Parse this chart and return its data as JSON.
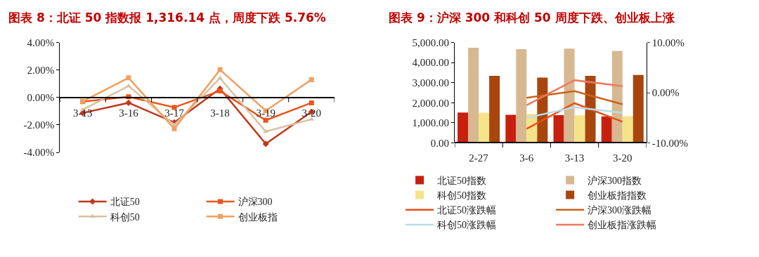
{
  "chart_data": [
    {
      "type": "line",
      "title": "图表 8：北证 50 指数报 1,316.14 点，周度下跌 5.76%",
      "categories": [
        "3-13",
        "3-16",
        "3-17",
        "3-18",
        "3-19",
        "3-20"
      ],
      "ylim": [
        -4,
        4
      ],
      "yticks": [
        {
          "value": -4,
          "label": "-4.00%"
        },
        {
          "value": -2,
          "label": "-2.00%"
        },
        {
          "value": 0,
          "label": "0.00%"
        },
        {
          "value": 2,
          "label": "2.00%"
        },
        {
          "value": 4,
          "label": "4.00%"
        }
      ],
      "legend": "bottom",
      "line_style": "solid",
      "series": [
        {
          "name": "北证50",
          "color": "#c0391b",
          "marker": "diamond",
          "values": [
            -1.13,
            -0.39,
            -1.82,
            0.64,
            -3.38,
            -1.05
          ]
        },
        {
          "name": "沪深300",
          "color": "#e8571c",
          "marker": "square",
          "values": [
            -0.31,
            0.05,
            -0.72,
            0.48,
            -1.66,
            -0.39
          ]
        },
        {
          "name": "科创50",
          "color": "#d9c0a0",
          "marker": "triangle",
          "values": [
            -0.89,
            0.84,
            -2.0,
            1.41,
            -2.48,
            -1.59
          ]
        },
        {
          "name": "创业板指",
          "color": "#f0a060",
          "marker": "square",
          "values": [
            -0.28,
            1.43,
            -2.28,
            2.02,
            -0.97,
            1.3
          ]
        }
      ]
    },
    {
      "type": "bar",
      "title": "图表 9：沪深 300 和科创 50 周度下跌、创业板上涨",
      "categories": [
        "2-27",
        "3-6",
        "3-13",
        "3-20"
      ],
      "ylim": [
        0,
        5000
      ],
      "yticks": [
        {
          "value": 0,
          "label": "0.00"
        },
        {
          "value": 1000,
          "label": "1,000.00"
        },
        {
          "value": 2000,
          "label": "2,000.00"
        },
        {
          "value": 3000,
          "label": "3,000.00"
        },
        {
          "value": 4000,
          "label": "4,000.00"
        },
        {
          "value": 5000,
          "label": "5,000.00"
        }
      ],
      "y2lim": [
        -10,
        10
      ],
      "y2ticks": [
        {
          "value": -10,
          "label": "-10.00%"
        },
        {
          "value": 0,
          "label": "0.00%"
        },
        {
          "value": 10,
          "label": "10.00%"
        }
      ],
      "legend": "bottom",
      "series": [
        {
          "name": "北证50指数",
          "type": "bar",
          "color": "#c8200e",
          "values": [
            1510,
            1400,
            1380,
            1320
          ]
        },
        {
          "name": "沪深300指数",
          "type": "bar",
          "color": "#d8b890",
          "values": [
            4740,
            4670,
            4700,
            4580
          ]
        },
        {
          "name": "科创50指数",
          "type": "bar",
          "color": "#f5e38a",
          "values": [
            1500,
            1440,
            1370,
            1330
          ]
        },
        {
          "name": "创业板指指数",
          "type": "bar",
          "color": "#a8460e",
          "values": [
            3340,
            3250,
            3340,
            3380
          ]
        },
        {
          "name": "北证50涨跌幅",
          "type": "line",
          "axis": "y2",
          "color": "#e8501c",
          "values": [
            null,
            -7.2,
            -2.1,
            -5.8
          ]
        },
        {
          "name": "沪深300涨跌幅",
          "type": "line",
          "axis": "y2",
          "color": "#c8641a",
          "values": [
            null,
            -1.0,
            0.3,
            -2.3
          ]
        },
        {
          "name": "科创50涨跌幅",
          "type": "line",
          "axis": "y2",
          "color": "#b8dde6",
          "values": [
            null,
            -5.0,
            -2.9,
            -4.0
          ]
        },
        {
          "name": "创业板指涨跌幅",
          "type": "line",
          "axis": "y2",
          "color": "#f07860",
          "values": [
            null,
            -2.5,
            2.5,
            1.3
          ]
        }
      ]
    }
  ]
}
